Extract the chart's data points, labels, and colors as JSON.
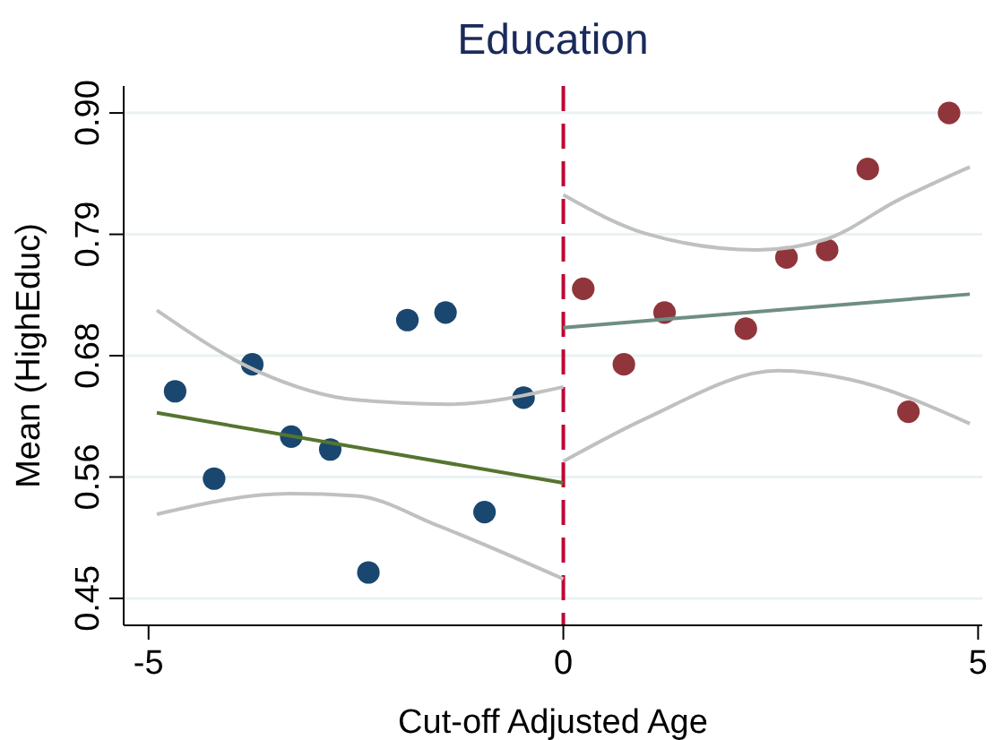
{
  "chart_data": {
    "type": "scatter",
    "title": "Education",
    "xlabel": "Cut-off Adjusted Age",
    "ylabel": "Mean (HighEduc)",
    "xlim": [
      -5.3,
      5.05
    ],
    "ylim": [
      0.425,
      0.925
    ],
    "xticks": [
      -5,
      0,
      5
    ],
    "yticks": [
      {
        "value": 0.45,
        "label": "0.45"
      },
      {
        "value": 0.5625,
        "label": "0.56"
      },
      {
        "value": 0.675,
        "label": "0.68"
      },
      {
        "value": 0.7875,
        "label": "0.79"
      },
      {
        "value": 0.9,
        "label": "0.90"
      }
    ],
    "grid": "y",
    "ref_lines": [
      {
        "axis": "x",
        "value": 0,
        "color": "#c10534",
        "line_style": "dashed"
      }
    ],
    "series": [
      {
        "color": "#1a476f",
        "x": [
          -4.68,
          -4.21,
          -3.75,
          -3.28,
          -2.81,
          -2.35,
          -1.88,
          -1.42,
          -0.95,
          -0.48
        ],
        "values": [
          0.642,
          0.561,
          0.667,
          0.6,
          0.588,
          0.474,
          0.708,
          0.715,
          0.53,
          0.636
        ]
      },
      {
        "color": "#90353b",
        "x": [
          0.24,
          0.73,
          1.22,
          2.2,
          2.69,
          3.18,
          3.67,
          4.16,
          4.65
        ],
        "values": [
          0.737,
          0.667,
          0.715,
          0.7,
          0.766,
          0.773,
          0.848,
          0.623,
          0.9
        ]
      },
      {
        "type": "line",
        "color": "#55752f",
        "x": [
          -4.9,
          0
        ],
        "values": [
          0.622,
          0.557
        ]
      },
      {
        "type": "line",
        "color": "#6e8e84",
        "x": [
          0,
          4.9
        ],
        "values": [
          0.701,
          0.732
        ]
      },
      {
        "type": "line",
        "color": "#c0c0c0",
        "x": [
          -4.9,
          -3.7,
          -2.5,
          -1.4,
          0
        ],
        "values": [
          0.717,
          0.661,
          0.634,
          0.63,
          0.646
        ]
      },
      {
        "type": "line",
        "color": "#c0c0c0",
        "x": [
          -4.9,
          -3.3,
          -2.5,
          -1.5,
          0
        ],
        "values": [
          0.528,
          0.547,
          0.545,
          0.517,
          0.468
        ]
      },
      {
        "type": "line",
        "color": "#c0c0c0",
        "x": [
          0,
          1.0,
          2.34,
          3.17,
          4.03,
          4.9
        ],
        "values": [
          0.824,
          0.788,
          0.773,
          0.783,
          0.819,
          0.85
        ]
      },
      {
        "type": "line",
        "color": "#c0c0c0",
        "x": [
          0,
          1.0,
          2.59,
          3.45,
          4.9
        ],
        "values": [
          0.577,
          0.617,
          0.661,
          0.653,
          0.612
        ]
      }
    ]
  }
}
